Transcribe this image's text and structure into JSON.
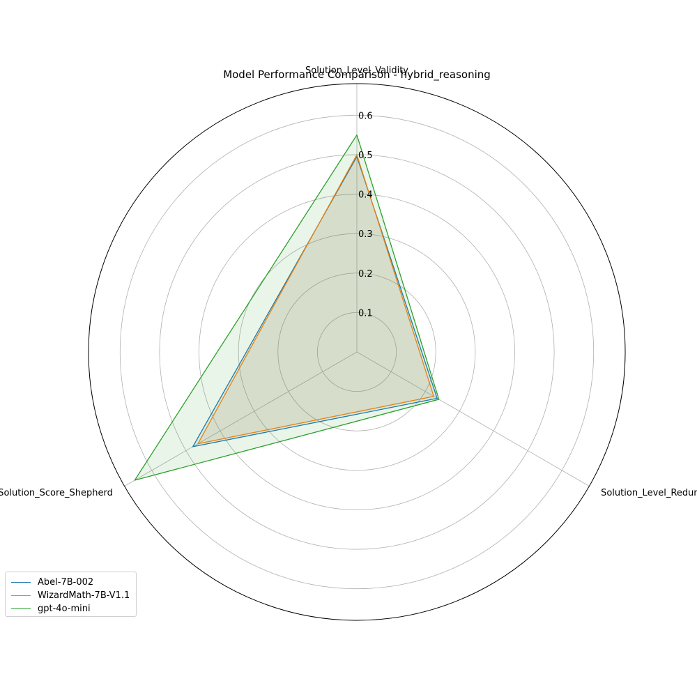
{
  "chart_data": {
    "type": "radar",
    "title": "Model Performance Comparison - hybrid_reasoning",
    "axes": [
      "Solution_Level_Validity",
      "Solution_Level_Redundancy",
      "Solution_Score_Shepherd"
    ],
    "rlim": [
      0,
      0.68
    ],
    "rticks": [
      0.1,
      0.2,
      0.3,
      0.4,
      0.5,
      0.6
    ],
    "rtick_labels": [
      "0.1",
      "0.2",
      "0.3",
      "0.4",
      "0.5",
      "0.6"
    ],
    "grid": true,
    "legend_position": "lower-left",
    "series": [
      {
        "name": "Abel-7B-002",
        "color": "#1f77b4",
        "values": [
          0.495,
          0.235,
          0.48
        ]
      },
      {
        "name": "WizardMath-7B-V1.1",
        "color": "#ff7f0e",
        "values": [
          0.5,
          0.225,
          0.465
        ]
      },
      {
        "name": "gpt-4o-mini",
        "color": "#2ca02c",
        "values": [
          0.55,
          0.24,
          0.65
        ]
      }
    ]
  }
}
